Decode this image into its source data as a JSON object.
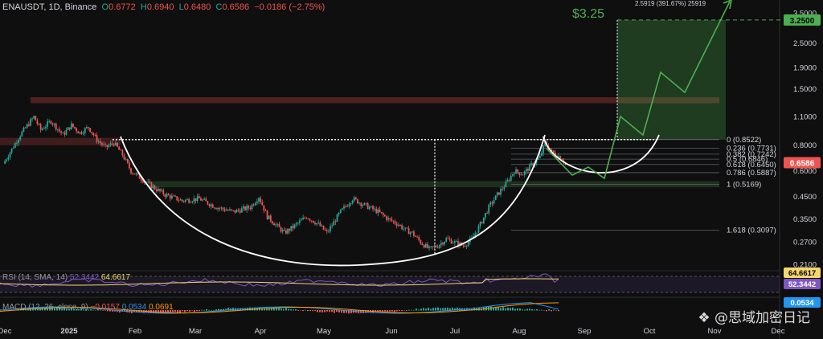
{
  "header": {
    "symbol": "ENAUSDT, 1D, Binance",
    "open_label": "O",
    "open": "0.6772",
    "high_label": "H",
    "high": "0.6940",
    "low_label": "L",
    "low": "0.6480",
    "close_label": "C",
    "close": "0.6586",
    "change": "−0.0186 (−2.75%)"
  },
  "rsi_legend": {
    "label": "RSI (14, SMA, 14)",
    "v1": "52.3442",
    "v2": "64.6617"
  },
  "macd_legend": {
    "label": "MACD (12, 26, close, 9)",
    "v1": "−0.0157",
    "v2": "0.0534",
    "v3": "0.0691"
  },
  "watermark": "思域加密日记",
  "colors": {
    "bg": "#0f0f0f",
    "up": "#26a69a",
    "down": "#ef5350",
    "target": "#4caf50",
    "rsi": "#7e57c2"
  },
  "chart_data": {
    "type": "candlestick",
    "y_scale": "log",
    "y_ticks": [
      "3.5000",
      "2.5000",
      "1.9000",
      "1.5000",
      "1.1000",
      "0.8000",
      "0.6000",
      "0.4500",
      "0.3500",
      "0.2700",
      "0.2100"
    ],
    "x_ticks": [
      "Dec",
      "2025",
      "Feb",
      "Mar",
      "Apr",
      "May",
      "Jun",
      "Jul",
      "Aug",
      "Sep",
      "Oct",
      "Nov",
      "Dec"
    ],
    "price_badges": {
      "target": "3.2500",
      "current": "0.6586"
    },
    "target_label": "$3.25",
    "measure_label": "2.5919 (391.67%) 25919",
    "fib_levels": [
      {
        "ratio": "0",
        "label": "0 (0.8522)",
        "value": 0.8522
      },
      {
        "ratio": "0.236",
        "label": "0.236 (0.7731)",
        "value": 0.7731
      },
      {
        "ratio": "0.382",
        "label": "0.382 (0.7242)",
        "value": 0.7242
      },
      {
        "ratio": "0.5",
        "label": "0.5 (0.6846)",
        "value": 0.6846
      },
      {
        "ratio": "0.618",
        "label": "0.618 (0.6450)",
        "value": 0.645
      },
      {
        "ratio": "0.786",
        "label": "0.786 (0.5887)",
        "value": 0.5887
      },
      {
        "ratio": "1",
        "label": "1 (0.5169)",
        "value": 0.5169
      },
      {
        "ratio": "1.618",
        "label": "1.618 (0.3097)",
        "value": 0.3097
      }
    ],
    "resistance_zone": [
      1.28,
      1.37
    ],
    "neckline_zone": [
      0.8,
      0.87
    ],
    "support_zone": [
      0.5,
      0.535
    ],
    "neckline": 0.8522,
    "cup_bottom": 0.235,
    "price_path": [
      [
        0,
        0.65
      ],
      [
        10,
        0.9
      ],
      [
        18,
        1.1
      ],
      [
        22,
        0.95
      ],
      [
        28,
        1.05
      ],
      [
        35,
        0.9
      ],
      [
        40,
        1.0
      ],
      [
        45,
        0.92
      ],
      [
        50,
        0.98
      ],
      [
        55,
        0.85
      ],
      [
        60,
        0.78
      ],
      [
        65,
        0.82
      ],
      [
        70,
        0.72
      ],
      [
        75,
        0.6
      ],
      [
        85,
        0.52
      ],
      [
        95,
        0.46
      ],
      [
        105,
        0.43
      ],
      [
        115,
        0.44
      ],
      [
        125,
        0.4
      ],
      [
        135,
        0.38
      ],
      [
        145,
        0.4
      ],
      [
        150,
        0.45
      ],
      [
        155,
        0.36
      ],
      [
        165,
        0.3
      ],
      [
        170,
        0.32
      ],
      [
        178,
        0.36
      ],
      [
        185,
        0.33
      ],
      [
        190,
        0.3
      ],
      [
        198,
        0.38
      ],
      [
        205,
        0.44
      ],
      [
        212,
        0.41
      ],
      [
        220,
        0.38
      ],
      [
        226,
        0.35
      ],
      [
        232,
        0.33
      ],
      [
        236,
        0.31
      ],
      [
        240,
        0.3
      ],
      [
        245,
        0.27
      ],
      [
        250,
        0.25
      ],
      [
        255,
        0.26
      ],
      [
        260,
        0.28
      ],
      [
        265,
        0.27
      ],
      [
        270,
        0.26
      ],
      [
        275,
        0.28
      ],
      [
        280,
        0.33
      ],
      [
        285,
        0.4
      ],
      [
        290,
        0.46
      ],
      [
        295,
        0.52
      ],
      [
        300,
        0.6
      ],
      [
        305,
        0.58
      ],
      [
        310,
        0.64
      ],
      [
        315,
        0.7
      ],
      [
        318,
        0.82
      ],
      [
        322,
        0.74
      ],
      [
        327,
        0.7
      ],
      [
        330,
        0.6586
      ]
    ]
  }
}
